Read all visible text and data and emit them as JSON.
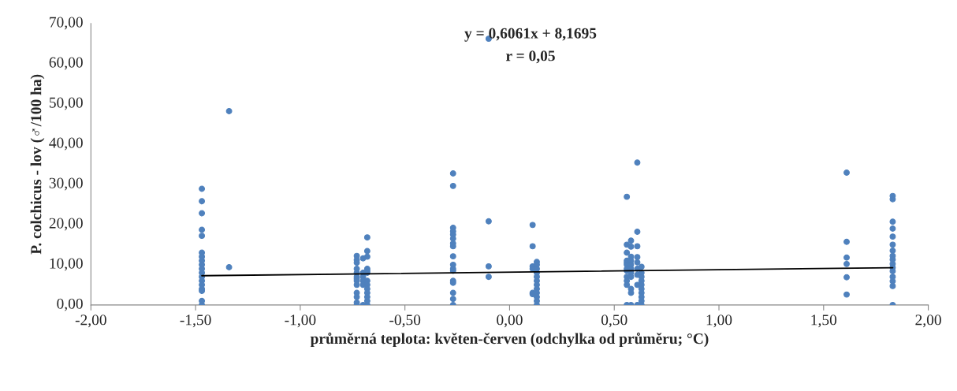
{
  "chart_data": {
    "type": "scatter",
    "xlabel": "průměrná teplota: květen-červen (odchylka od průměru; °C)",
    "ylabel": "P. colchicus - lov (♂/100 ha)",
    "annotations": [
      "y = 0,6061x + 8,1695",
      "r = 0,05"
    ],
    "xlim": [
      -2,
      2
    ],
    "xticks": [
      {
        "value": -2,
        "label": "-2,00"
      },
      {
        "value": -1.5,
        "label": "-1,50"
      },
      {
        "value": -1,
        "label": "-1,00"
      },
      {
        "value": -0.5,
        "label": "-0,50"
      },
      {
        "value": 0,
        "label": "0,00"
      },
      {
        "value": 0.5,
        "label": "0,50"
      },
      {
        "value": 1,
        "label": "1,00"
      },
      {
        "value": 1.5,
        "label": "1,50"
      },
      {
        "value": 2,
        "label": "2,00"
      }
    ],
    "ylim": [
      0,
      70
    ],
    "yticks": [
      {
        "value": 0,
        "label": "0,00"
      },
      {
        "value": 10,
        "label": "10,00"
      },
      {
        "value": 20,
        "label": "20,00"
      },
      {
        "value": 30,
        "label": "30,00"
      },
      {
        "value": 40,
        "label": "40,00"
      },
      {
        "value": 50,
        "label": "50,00"
      },
      {
        "value": 60,
        "label": "60,00"
      },
      {
        "value": 70,
        "label": "70,00"
      }
    ],
    "grid": false,
    "legend": false,
    "marker": "circle",
    "series": [
      {
        "color": "#4f81bd",
        "x": [
          -1.47,
          -1.47,
          -1.47,
          -1.47,
          -1.47,
          -1.47,
          -1.47,
          -1.47,
          -1.47,
          -1.47,
          -1.47,
          -1.47,
          -1.47,
          -1.47,
          -1.47,
          -1.47,
          -1.47,
          -1.47,
          -1.34,
          -1.34,
          -0.73,
          -0.73,
          -0.73,
          -0.73,
          -0.73,
          -0.73,
          -0.73,
          -0.73,
          -0.73,
          -0.73,
          -0.73,
          -0.73,
          -0.73,
          -0.7,
          -0.7,
          -0.7,
          -0.7,
          -0.7,
          -0.7,
          -0.68,
          -0.68,
          -0.68,
          -0.68,
          -0.68,
          -0.68,
          -0.68,
          -0.68,
          -0.68,
          -0.68,
          -0.68,
          -0.68,
          -0.68,
          -0.27,
          -0.27,
          -0.27,
          -0.27,
          -0.27,
          -0.27,
          -0.27,
          -0.27,
          -0.27,
          -0.27,
          -0.27,
          -0.27,
          -0.27,
          -0.27,
          -0.27,
          -0.27,
          -0.27,
          -0.1,
          -0.1,
          -0.1,
          -0.1,
          0.11,
          0.11,
          0.11,
          0.11,
          0.11,
          0.11,
          0.13,
          0.13,
          0.13,
          0.13,
          0.13,
          0.13,
          0.13,
          0.13,
          0.13,
          0.13,
          0.13,
          0.13,
          0.56,
          0.56,
          0.56,
          0.56,
          0.56,
          0.56,
          0.56,
          0.56,
          0.56,
          0.56,
          0.56,
          0.56,
          0.58,
          0.58,
          0.58,
          0.58,
          0.58,
          0.58,
          0.58,
          0.58,
          0.58,
          0.58,
          0.58,
          0.61,
          0.61,
          0.61,
          0.61,
          0.61,
          0.61,
          0.61,
          0.61,
          0.61,
          0.63,
          0.63,
          0.63,
          0.63,
          0.63,
          0.63,
          0.63,
          0.63,
          0.63,
          0.63,
          1.61,
          1.61,
          1.61,
          1.61,
          1.61,
          1.61,
          1.83,
          1.83,
          1.83,
          1.83,
          1.83,
          1.83,
          1.83,
          1.83,
          1.83,
          1.83,
          1.83,
          1.83,
          1.83,
          1.83,
          1.83,
          1.83
        ],
        "values": [
          28.9,
          25.8,
          22.8,
          18.7,
          17.2,
          13,
          12,
          11,
          10,
          9,
          8,
          7,
          6,
          5,
          4,
          3.5,
          1,
          0,
          48.2,
          9.4,
          12.2,
          11.2,
          10.5,
          9,
          8,
          7,
          6.5,
          6,
          5,
          3,
          2,
          0.6,
          0,
          11.6,
          8,
          7,
          6,
          5,
          0,
          16.8,
          13.4,
          12,
          9,
          8.5,
          8,
          6,
          5,
          4,
          3,
          2,
          1,
          0,
          32.7,
          29.6,
          19.2,
          18.3,
          17.5,
          16.5,
          15.3,
          14.6,
          12.1,
          10,
          9,
          8.5,
          6,
          5.5,
          3,
          1.5,
          0,
          66.2,
          20.8,
          9.6,
          7,
          19.9,
          14.6,
          9.6,
          9,
          3,
          2.7,
          10.7,
          10,
          9,
          8,
          7,
          6,
          5,
          4,
          3,
          2,
          1,
          0,
          26.9,
          15,
          13,
          11,
          10.5,
          10,
          9,
          8.5,
          7,
          6,
          5,
          0,
          16,
          14.5,
          12,
          11,
          10,
          9,
          8,
          7,
          4,
          3,
          0,
          35.4,
          18.2,
          14.6,
          11.9,
          10.6,
          9,
          7.5,
          5,
          0,
          9.5,
          8,
          7,
          6,
          5,
          4,
          3,
          2,
          1,
          0,
          32.9,
          15.7,
          11.8,
          10.2,
          6.9,
          2.6,
          27.1,
          26.3,
          20.7,
          19,
          17,
          15,
          13.5,
          12.2,
          11.3,
          10.2,
          9.3,
          8.4,
          7,
          5.9,
          4.7,
          0
        ]
      },
      {
        "type": "line",
        "color": "#000000",
        "marker": "none",
        "line_style": "solid",
        "x": [
          -1.47,
          1.83
        ],
        "values": [
          7.28,
          9.28
        ]
      }
    ]
  }
}
